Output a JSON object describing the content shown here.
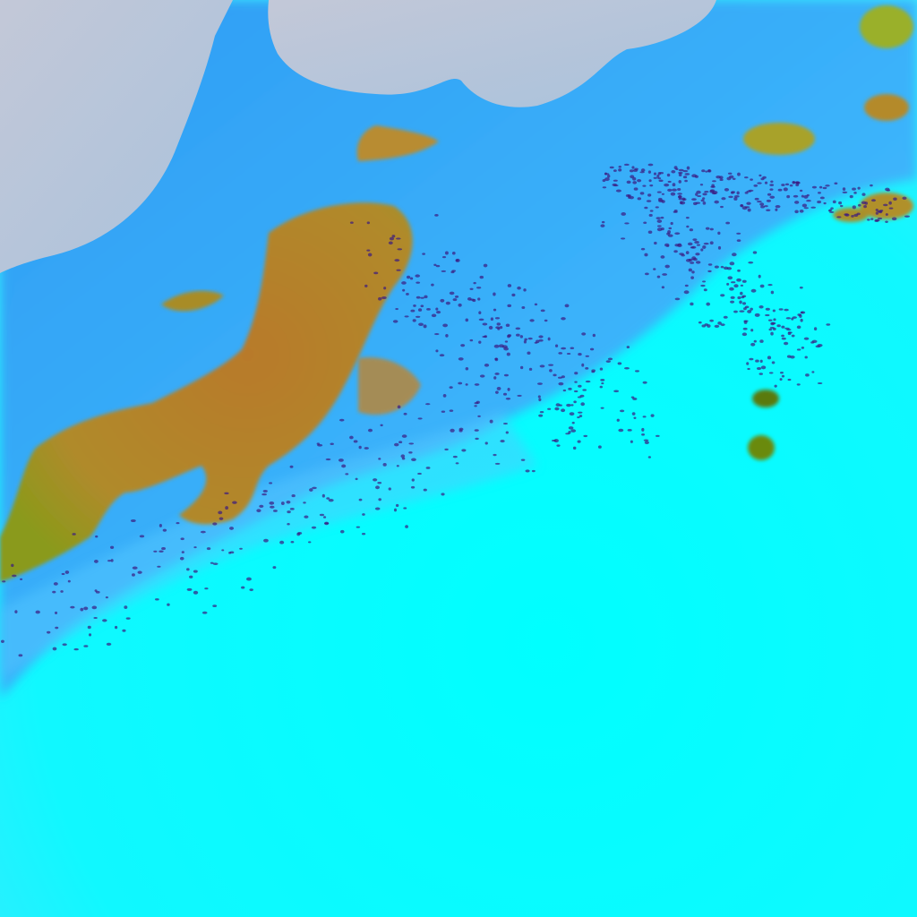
{
  "image": {
    "kind": "false-color satellite imagery",
    "colors": {
      "land": "#b8d0e0",
      "shallow_water": "#33aaff",
      "open_water": "#00ffff",
      "cloud": "#b07a28",
      "cloud_edge": "#6a8a10",
      "speckle": "#3a1a80"
    }
  }
}
